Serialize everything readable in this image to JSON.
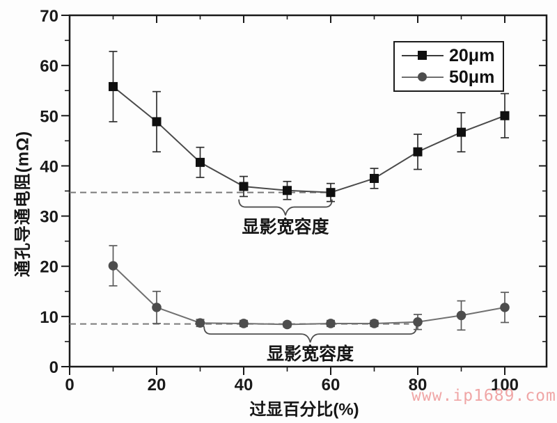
{
  "watermark": "www.ip1689.com",
  "watermark_color": "#f0a6a6",
  "chart_data": {
    "type": "line",
    "title": "",
    "xlabel": "过显百分比(%)",
    "ylabel": "通孔导通电阻(mΩ)",
    "xlim": [
      0,
      109.6
    ],
    "ylim": [
      0,
      70
    ],
    "grid": false,
    "x_ticks": [
      0,
      20,
      40,
      60,
      80,
      100
    ],
    "x_minor_ticks": [
      10,
      30,
      50,
      70,
      90
    ],
    "y_ticks": [
      0,
      10,
      20,
      30,
      40,
      50,
      60,
      70
    ],
    "y_minor_ticks": [
      5,
      15,
      25,
      35,
      45,
      55,
      65
    ],
    "x": [
      10,
      20,
      30,
      40,
      50,
      60,
      70,
      80,
      90,
      100
    ],
    "series": [
      {
        "name": "20μm",
        "marker": "square",
        "color": "#0f0f0f",
        "line_color": "#4a4a4a",
        "error_color": "#2e2e2e",
        "values": [
          55.8,
          48.8,
          40.7,
          35.9,
          35.1,
          34.7,
          37.5,
          42.8,
          46.7,
          50.0
        ],
        "errors": [
          7.0,
          6.0,
          3.0,
          2.0,
          1.8,
          1.8,
          2.0,
          3.5,
          3.9,
          4.4
        ]
      },
      {
        "name": "50μm",
        "marker": "circle",
        "color": "#4d4d4d",
        "line_color": "#707070",
        "error_color": "#5a5a5a",
        "values": [
          20.1,
          11.8,
          8.7,
          8.6,
          8.4,
          8.6,
          8.6,
          8.9,
          10.2,
          11.8
        ],
        "errors": [
          4.0,
          3.2,
          0.7,
          0.6,
          0.5,
          0.6,
          0.6,
          1.5,
          2.9,
          3.0
        ]
      }
    ],
    "reference_lines": [
      {
        "y": 34.7,
        "x1": 0,
        "x2": 60,
        "style": "dashed",
        "color": "#7a7a7a"
      },
      {
        "y": 8.5,
        "x1": 0,
        "x2": 78,
        "style": "dashed",
        "color": "#7a7a7a"
      }
    ],
    "annotations": [
      {
        "text": "显影宽容度",
        "x1": 38.9,
        "x2": 60.3,
        "y": 31.8
      },
      {
        "text": "显影宽容度",
        "x1": 30.9,
        "x2": 79.7,
        "y": 6.5
      }
    ],
    "legend": {
      "position": "top-right",
      "entries": [
        "20μm",
        "50μm"
      ]
    }
  }
}
